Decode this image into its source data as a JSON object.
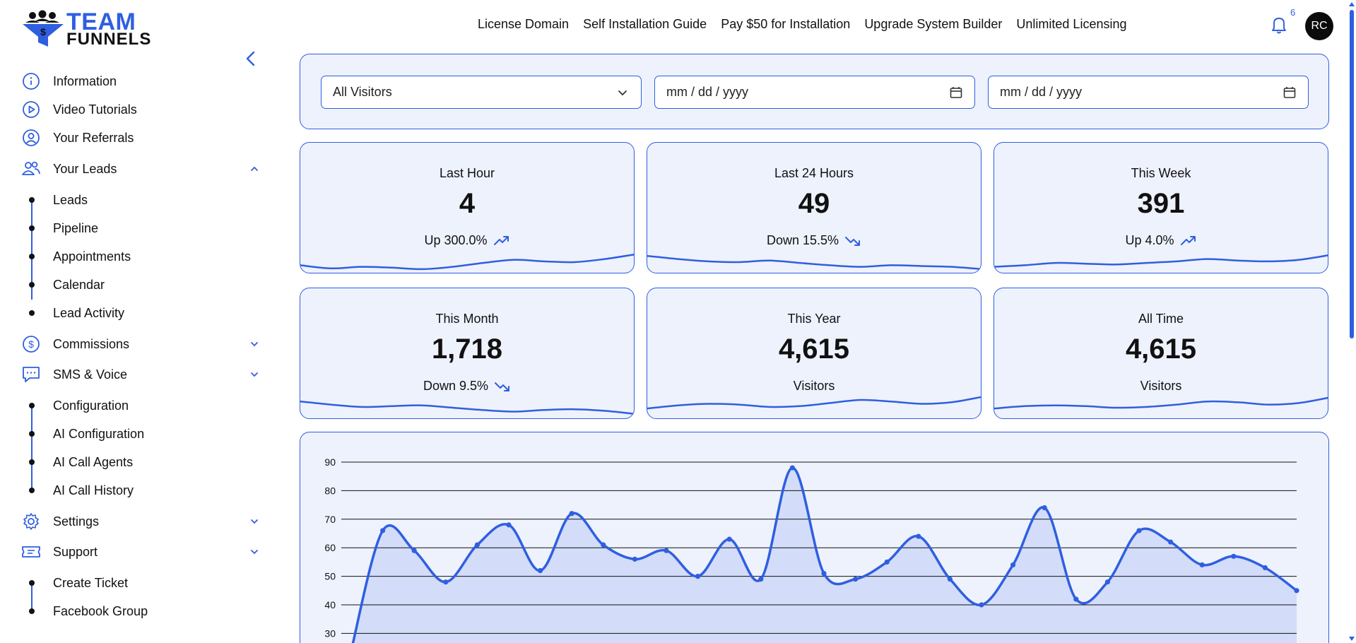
{
  "brand": {
    "line1": "TEAM",
    "line2": "FUNNELS"
  },
  "colors": {
    "accent": "#2f5fe0",
    "panel_bg": "#eef2fd",
    "text": "#111111"
  },
  "sidebar": {
    "items": [
      {
        "label": "Information",
        "icon": "info-icon"
      },
      {
        "label": "Video Tutorials",
        "icon": "play-circle-icon"
      },
      {
        "label": "Your Referrals",
        "icon": "user-circle-icon"
      },
      {
        "label": "Your Leads",
        "icon": "users-icon",
        "expanded": true,
        "children": [
          "Leads",
          "Pipeline",
          "Appointments",
          "Calendar",
          "Lead Activity"
        ]
      },
      {
        "label": "Commissions",
        "icon": "dollar-circle-icon",
        "expanded": false
      },
      {
        "label": "SMS & Voice",
        "icon": "chat-icon",
        "expanded": true,
        "children": [
          "Configuration",
          "AI Configuration",
          "AI Call Agents",
          "AI Call History"
        ]
      },
      {
        "label": "Settings",
        "icon": "gear-icon",
        "expanded": false
      },
      {
        "label": "Support",
        "icon": "ticket-icon",
        "expanded": true,
        "children": [
          "Create Ticket",
          "Facebook Group"
        ]
      }
    ]
  },
  "topnav": [
    "License Domain",
    "Self Installation Guide",
    "Pay $50 for Installation",
    "Upgrade System Builder",
    "Unlimited Licensing"
  ],
  "header": {
    "notifications": "6",
    "avatar_initials": "RC"
  },
  "filters": {
    "visitors_select": "All Visitors",
    "start_date_placeholder": "mm / dd / yyyy",
    "end_date_placeholder": "mm / dd / yyyy"
  },
  "stats": [
    {
      "title": "Last Hour",
      "value": "4",
      "sub": "Up 300.0%",
      "trend": "up"
    },
    {
      "title": "Last 24 Hours",
      "value": "49",
      "sub": "Down 15.5%",
      "trend": "down"
    },
    {
      "title": "This Week",
      "value": "391",
      "sub": "Up 4.0%",
      "trend": "up"
    },
    {
      "title": "This Month",
      "value": "1,718",
      "sub": "Down 9.5%",
      "trend": "down"
    },
    {
      "title": "This Year",
      "value": "4,615",
      "sub": "Visitors",
      "trend": "none"
    },
    {
      "title": "All Time",
      "value": "4,615",
      "sub": "Visitors",
      "trend": "none"
    }
  ],
  "chart_data": {
    "type": "area",
    "title": "",
    "xlabel": "",
    "ylabel": "",
    "ylim": [
      30,
      90
    ],
    "yticks": [
      90,
      80,
      70,
      60,
      50,
      40,
      30
    ],
    "grid": true,
    "values": [
      24,
      66,
      59,
      48,
      61,
      68,
      52,
      72,
      61,
      56,
      59,
      50,
      63,
      49,
      88,
      51,
      49,
      55,
      64,
      49,
      40,
      54,
      74,
      42,
      48,
      66,
      62,
      54,
      57,
      53,
      45
    ]
  }
}
